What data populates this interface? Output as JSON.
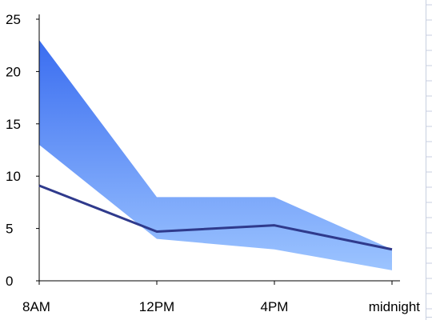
{
  "chart_data": {
    "type": "area",
    "title": "",
    "xlabel": "",
    "ylabel": "",
    "categories": [
      "8AM",
      "12PM",
      "4PM",
      "midnight"
    ],
    "ylim": [
      0,
      25
    ],
    "y_ticks": [
      "0",
      "5",
      "10",
      "15",
      "20",
      "25"
    ],
    "grid": false,
    "legend": "none",
    "series": [
      {
        "kind": "band_upper",
        "values": [
          23,
          8,
          8,
          3
        ]
      },
      {
        "kind": "band_lower",
        "values": [
          13,
          4,
          3,
          1
        ]
      },
      {
        "kind": "line",
        "values": [
          9.1,
          4.7,
          5.3,
          3
        ]
      }
    ],
    "colors": {
      "band_top": "#3a6df0",
      "band_bottom": "#9cc4ff",
      "line": "#2f3a8c",
      "sheet_grid": "#c8cfe0",
      "axis": "#000000"
    }
  }
}
